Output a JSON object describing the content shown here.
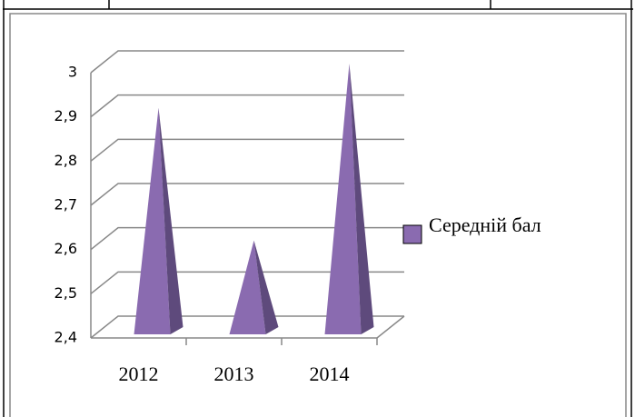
{
  "chart_data": {
    "type": "pyramid3d",
    "categories": [
      "2012",
      "2013",
      "2014"
    ],
    "series": [
      {
        "name": "Середній бал",
        "color": "#8a6bb0",
        "values": [
          2.9,
          2.6,
          3.0
        ]
      }
    ],
    "ylim": [
      2.4,
      3.0
    ],
    "yticks": [
      {
        "value": 2.4,
        "label": "2,4"
      },
      {
        "value": 2.5,
        "label": "2,5"
      },
      {
        "value": 2.6,
        "label": "2,6"
      },
      {
        "value": 2.7,
        "label": "2,7"
      },
      {
        "value": 2.8,
        "label": "2,8"
      },
      {
        "value": 2.9,
        "label": "2,9"
      },
      {
        "value": 3.0,
        "label": "3"
      }
    ],
    "grid": true,
    "legend": "right"
  }
}
